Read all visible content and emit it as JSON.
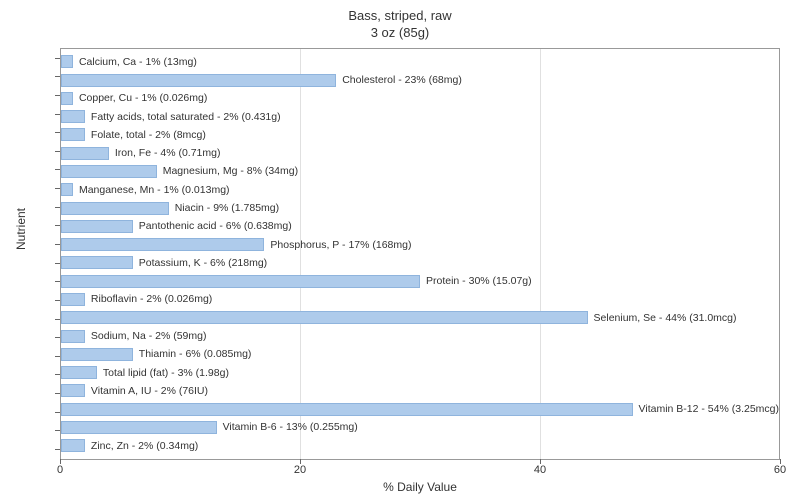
{
  "title_line1": "Bass, striped, raw",
  "title_line2": "3 oz (85g)",
  "y_axis_label": "Nutrient",
  "x_axis_label": "% Daily Value",
  "chart": {
    "type": "bar-horizontal",
    "xlim": [
      0,
      60
    ],
    "xticks": [
      0,
      20,
      40,
      60
    ],
    "bar_color": "#aecbeb",
    "bar_border_color": "#8fb4dd",
    "grid_color": "#e0e0e0",
    "background_color": "#ffffff",
    "label_fontsize": 10.5,
    "title_fontsize": 13
  },
  "nutrients": [
    {
      "label": "Calcium, Ca - 1% (13mg)",
      "value": 1
    },
    {
      "label": "Cholesterol - 23% (68mg)",
      "value": 23
    },
    {
      "label": "Copper, Cu - 1% (0.026mg)",
      "value": 1
    },
    {
      "label": "Fatty acids, total saturated - 2% (0.431g)",
      "value": 2
    },
    {
      "label": "Folate, total - 2% (8mcg)",
      "value": 2
    },
    {
      "label": "Iron, Fe - 4% (0.71mg)",
      "value": 4
    },
    {
      "label": "Magnesium, Mg - 8% (34mg)",
      "value": 8
    },
    {
      "label": "Manganese, Mn - 1% (0.013mg)",
      "value": 1
    },
    {
      "label": "Niacin - 9% (1.785mg)",
      "value": 9
    },
    {
      "label": "Pantothenic acid - 6% (0.638mg)",
      "value": 6
    },
    {
      "label": "Phosphorus, P - 17% (168mg)",
      "value": 17
    },
    {
      "label": "Potassium, K - 6% (218mg)",
      "value": 6
    },
    {
      "label": "Protein - 30% (15.07g)",
      "value": 30
    },
    {
      "label": "Riboflavin - 2% (0.026mg)",
      "value": 2
    },
    {
      "label": "Selenium, Se - 44% (31.0mcg)",
      "value": 44
    },
    {
      "label": "Sodium, Na - 2% (59mg)",
      "value": 2
    },
    {
      "label": "Thiamin - 6% (0.085mg)",
      "value": 6
    },
    {
      "label": "Total lipid (fat) - 3% (1.98g)",
      "value": 3
    },
    {
      "label": "Vitamin A, IU - 2% (76IU)",
      "value": 2
    },
    {
      "label": "Vitamin B-12 - 54% (3.25mcg)",
      "value": 54
    },
    {
      "label": "Vitamin B-6 - 13% (0.255mg)",
      "value": 13
    },
    {
      "label": "Zinc, Zn - 2% (0.34mg)",
      "value": 2
    }
  ]
}
